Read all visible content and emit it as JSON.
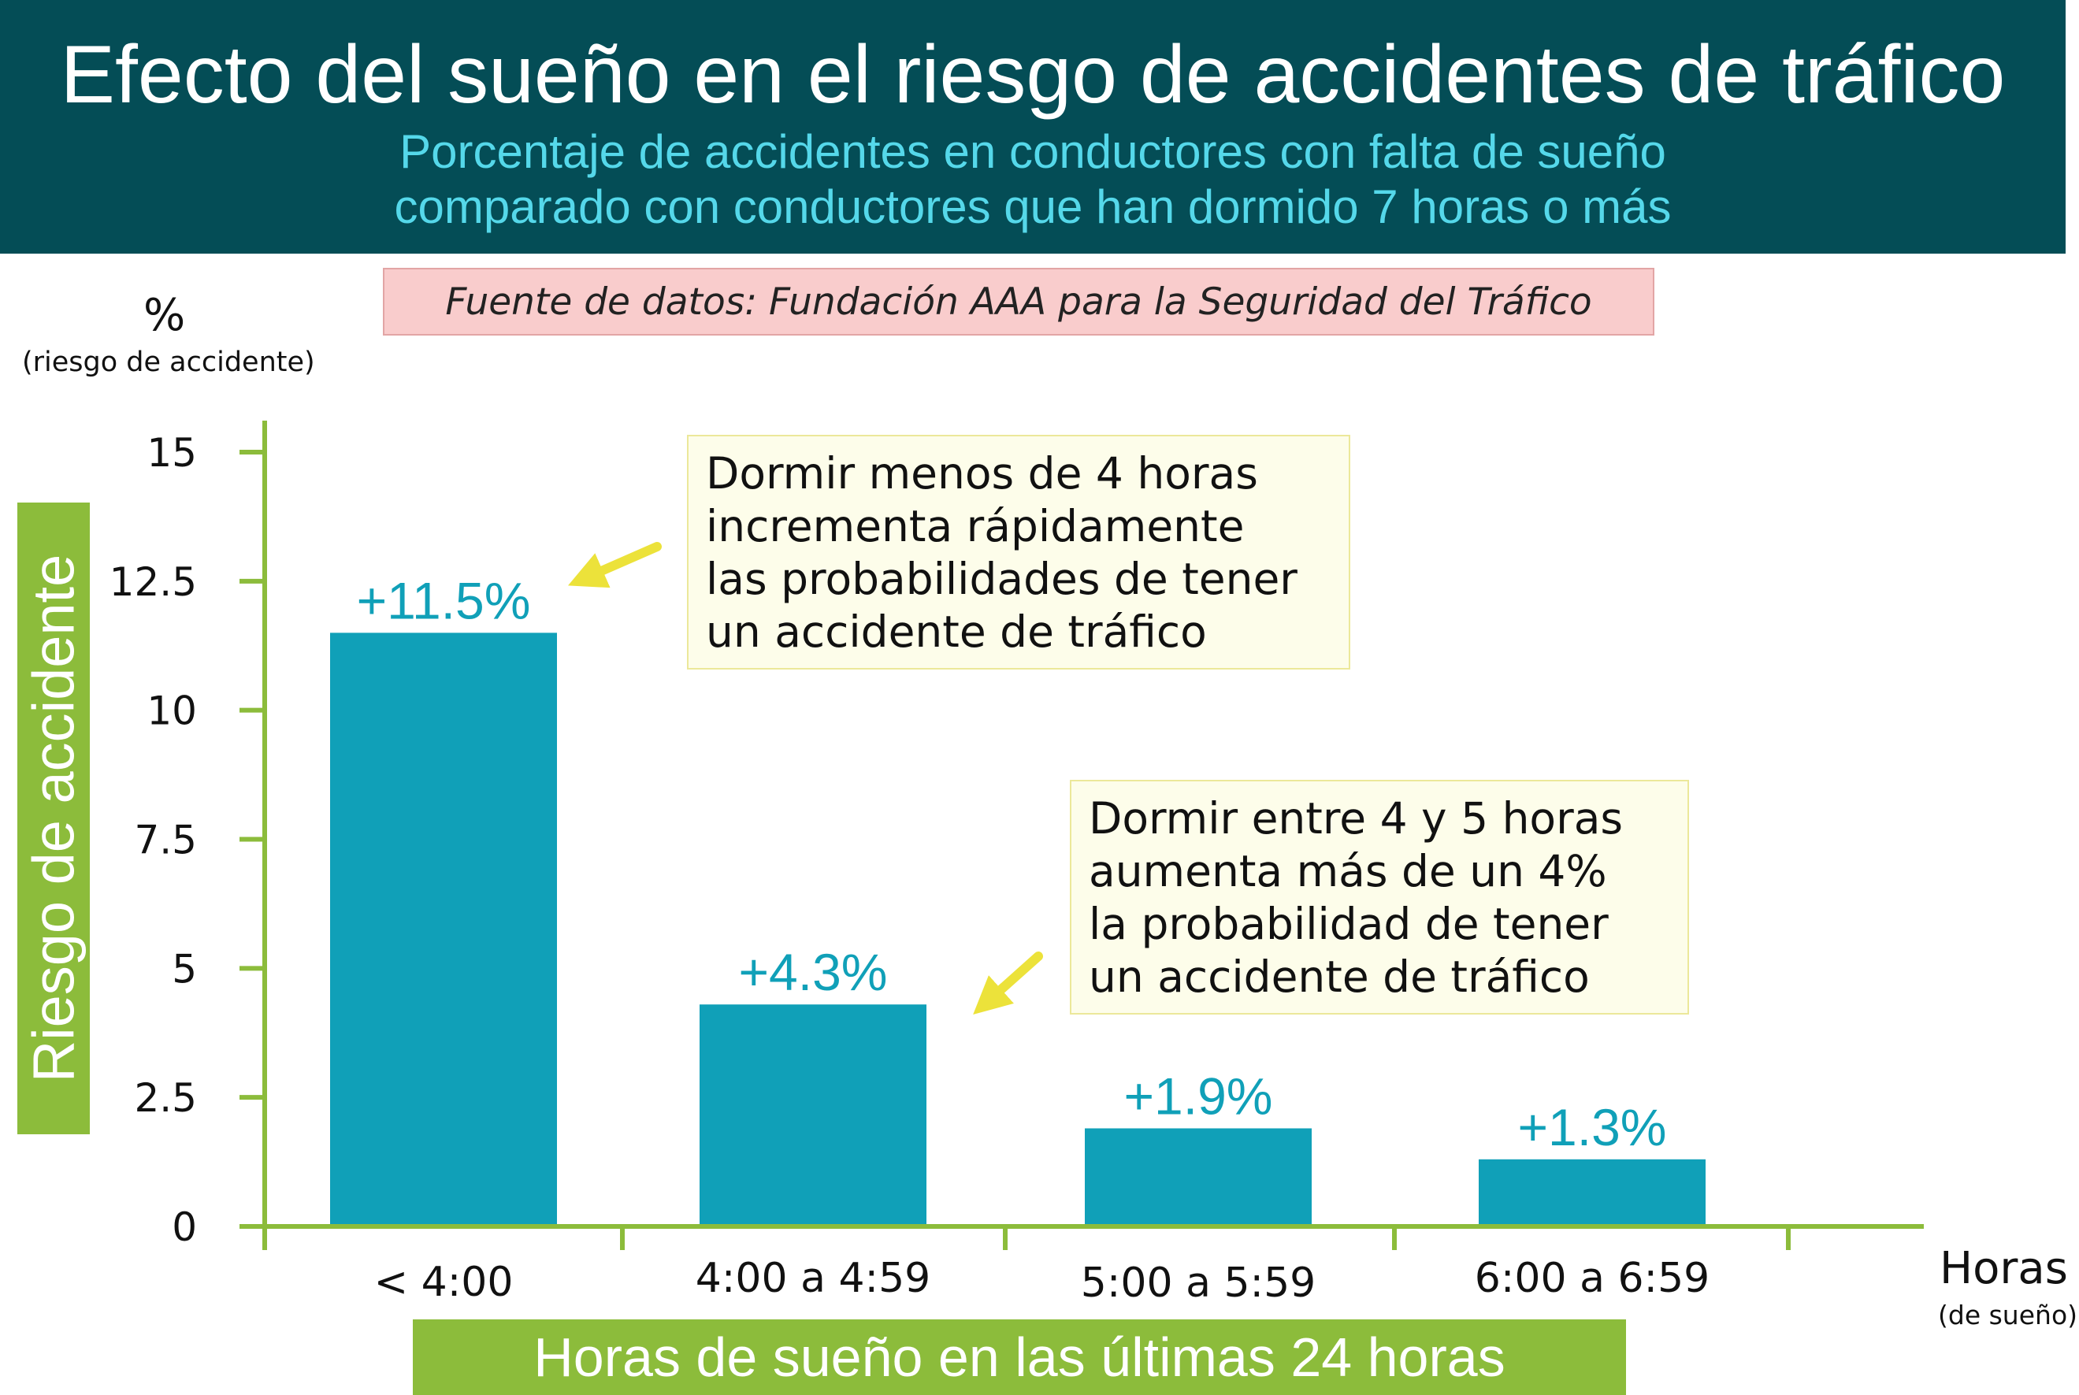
{
  "header": {
    "title": "Efecto del sueño en el riesgo de accidentes de tráfico",
    "subtitle_line1": "Porcentaje de accidentes en conductores con falta de sueño",
    "subtitle_line2": "comparado con conductores que han dormido 7 horas o más"
  },
  "source": "Fuente de datos: Fundación AAA para la Seguridad del Tráfico",
  "colors": {
    "header_bg": "#044d56",
    "subtitle": "#55d8ea",
    "bar": "#10a0b8",
    "axis": "#8cbc3b",
    "arrow": "#ece23a"
  },
  "axis_text": {
    "y_unit": "%",
    "y_unit_sub": "(riesgo de accidente)",
    "x_unit": "Horas",
    "x_unit_sub": "(de sueño)"
  },
  "callouts": [
    {
      "text": "Dormir menos de 4 horas\nincrementa rápidamente\nlas probabilidades de tener\nun accidente de tráfico"
    },
    {
      "text": "Dormir entre 4 y 5 horas\naumenta más de un 4%\nla probabilidad de tener\nun accidente de tráfico"
    }
  ],
  "chart_data": {
    "type": "bar",
    "title": "Efecto del sueño en el riesgo de accidentes de tráfico",
    "categories": [
      "< 4:00",
      "4:00 a 4:59",
      "5:00 a 5:59",
      "6:00 a 6:59"
    ],
    "values": [
      11.5,
      4.3,
      1.9,
      1.3
    ],
    "data_labels": [
      "+11.5%",
      "+4.3%",
      "+1.9%",
      "+1.3%"
    ],
    "ylabel": "Riesgo de accidente",
    "xlabel": "Horas de sueño en las últimas 24 horas",
    "ylim": [
      0,
      15
    ],
    "yticks": [
      0,
      2.5,
      5,
      7.5,
      10,
      12.5,
      15
    ],
    "ytick_labels": [
      "0",
      "2.5",
      "5",
      "7.5",
      "10",
      "12.5",
      "15"
    ],
    "grid": false
  }
}
